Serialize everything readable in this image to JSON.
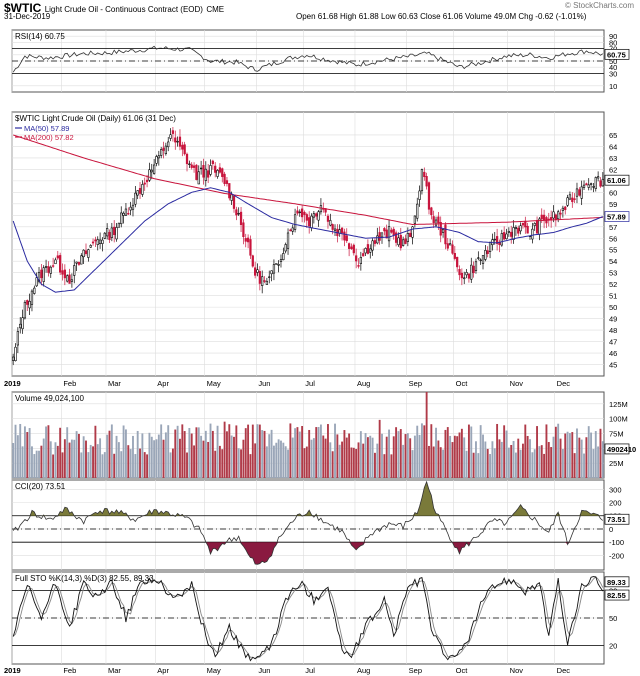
{
  "header": {
    "symbol": "$WTIC",
    "description": "Light Crude Oil - Continuous Contract (EOD)",
    "exchange": "CME",
    "date": "31-Dec-2019",
    "ohlc": "Open 61.68  High 61.88  Low 60.63  Close 61.06  Volume 49.0M  Chg -0.62 (-1.01%)",
    "brand": "© StockCharts.com"
  },
  "colors": {
    "up": "#000000",
    "down": "#c8143c",
    "ma50": "#2a2aa0",
    "ma200": "#c8143c",
    "rsi": "#333333",
    "grid": "#dddddd",
    "volUp": "#9aa6b8",
    "volDown": "#b03a48",
    "cciFill": "#7a7a3a",
    "cciFillDown": "#8a1a40"
  },
  "x_axis": {
    "months": [
      {
        "label": "2019",
        "bar": 0,
        "bold": true
      },
      {
        "label": "Feb",
        "bar": 21
      },
      {
        "label": "Mar",
        "bar": 40
      },
      {
        "label": "Apr",
        "bar": 61
      },
      {
        "label": "May",
        "bar": 82
      },
      {
        "label": "Jun",
        "bar": 104
      },
      {
        "label": "Jul",
        "bar": 124
      },
      {
        "label": "Aug",
        "bar": 146
      },
      {
        "label": "Sep",
        "bar": 168
      },
      {
        "label": "Oct",
        "bar": 188
      },
      {
        "label": "Nov",
        "bar": 211
      },
      {
        "label": "Dec",
        "bar": 231
      }
    ],
    "bars": 252
  },
  "chart_data": [
    {
      "type": "line",
      "title": "RSI(14) 60.75",
      "ylim": [
        0,
        100
      ],
      "ticks": [
        90,
        80,
        70,
        60,
        50,
        40,
        30,
        10
      ],
      "ref_lines": [
        70,
        50,
        30
      ],
      "last_value": "60.75",
      "grid": true,
      "anchors": [
        [
          0,
          32
        ],
        [
          5,
          58
        ],
        [
          15,
          55
        ],
        [
          30,
          62
        ],
        [
          40,
          63
        ],
        [
          55,
          68
        ],
        [
          62,
          71
        ],
        [
          75,
          68
        ],
        [
          84,
          50
        ],
        [
          95,
          48
        ],
        [
          103,
          36
        ],
        [
          108,
          42
        ],
        [
          118,
          55
        ],
        [
          125,
          60
        ],
        [
          134,
          52
        ],
        [
          146,
          44
        ],
        [
          156,
          50
        ],
        [
          170,
          58
        ],
        [
          176,
          62
        ],
        [
          185,
          48
        ],
        [
          190,
          40
        ],
        [
          198,
          46
        ],
        [
          210,
          58
        ],
        [
          220,
          60
        ],
        [
          228,
          55
        ],
        [
          236,
          62
        ],
        [
          244,
          66
        ],
        [
          251,
          60.75
        ]
      ]
    },
    {
      "type": "candlestick",
      "title": "$WTIC Light Crude Oil (Daily) 61.06 (31 Dec)",
      "ylim": [
        44,
        67
      ],
      "ticks": [
        65,
        64,
        63,
        62,
        61,
        60,
        59,
        58,
        57,
        56,
        55,
        54,
        53,
        52,
        51,
        50,
        49,
        48,
        47,
        46,
        45
      ],
      "last_value": "61.06",
      "legend": [
        {
          "name": "MA(50) 57.89",
          "color": "#2a2aa0"
        },
        {
          "name": "MA(200) 57.82",
          "color": "#c8143c"
        }
      ],
      "ma50_last": "57.89",
      "ma200_last": "57.82",
      "grid": true,
      "anchors": [
        [
          0,
          45.4
        ],
        [
          4,
          49.5
        ],
        [
          8,
          51.5
        ],
        [
          12,
          53
        ],
        [
          18,
          54
        ],
        [
          24,
          52.5
        ],
        [
          30,
          54.5
        ],
        [
          36,
          56
        ],
        [
          42,
          56.5
        ],
        [
          50,
          59
        ],
        [
          56,
          61
        ],
        [
          62,
          63
        ],
        [
          67,
          65
        ],
        [
          72,
          63.5
        ],
        [
          78,
          61.5
        ],
        [
          85,
          62
        ],
        [
          90,
          61
        ],
        [
          96,
          58
        ],
        [
          103,
          53
        ],
        [
          108,
          52
        ],
        [
          113,
          54
        ],
        [
          118,
          57
        ],
        [
          122,
          58.5
        ],
        [
          126,
          57.5
        ],
        [
          131,
          59
        ],
        [
          136,
          57
        ],
        [
          142,
          56
        ],
        [
          147,
          54
        ],
        [
          152,
          55.5
        ],
        [
          160,
          56.5
        ],
        [
          166,
          55.5
        ],
        [
          170,
          56.5
        ],
        [
          174,
          62
        ],
        [
          178,
          58
        ],
        [
          184,
          56
        ],
        [
          188,
          54
        ],
        [
          192,
          52.5
        ],
        [
          196,
          53.5
        ],
        [
          202,
          55
        ],
        [
          208,
          56
        ],
        [
          214,
          57
        ],
        [
          220,
          56.5
        ],
        [
          226,
          57.5
        ],
        [
          232,
          58
        ],
        [
          238,
          59.5
        ],
        [
          244,
          61
        ],
        [
          251,
          61.06
        ]
      ],
      "ma50_anchors": [
        [
          0,
          57.5
        ],
        [
          6,
          54
        ],
        [
          12,
          52
        ],
        [
          18,
          51.3
        ],
        [
          26,
          51.5
        ],
        [
          36,
          53.5
        ],
        [
          46,
          55.5
        ],
        [
          56,
          57.5
        ],
        [
          66,
          59
        ],
        [
          76,
          60
        ],
        [
          84,
          60.4
        ],
        [
          92,
          60
        ],
        [
          100,
          59
        ],
        [
          110,
          57.8
        ],
        [
          120,
          57.2
        ],
        [
          130,
          56.8
        ],
        [
          140,
          56.4
        ],
        [
          150,
          56
        ],
        [
          160,
          56.1
        ],
        [
          170,
          56.8
        ],
        [
          180,
          57
        ],
        [
          190,
          56.5
        ],
        [
          198,
          55.7
        ],
        [
          206,
          55.6
        ],
        [
          214,
          56
        ],
        [
          222,
          56.3
        ],
        [
          230,
          56.5
        ],
        [
          238,
          57
        ],
        [
          244,
          57.3
        ],
        [
          251,
          57.89
        ]
      ],
      "ma200_anchors": [
        [
          0,
          65
        ],
        [
          30,
          63
        ],
        [
          60,
          61.2
        ],
        [
          90,
          59.9
        ],
        [
          120,
          59
        ],
        [
          150,
          58
        ],
        [
          170,
          57.2
        ],
        [
          190,
          57.3
        ],
        [
          210,
          57.4
        ],
        [
          230,
          57.6
        ],
        [
          251,
          57.82
        ]
      ]
    },
    {
      "type": "bar",
      "title": "Volume 49,024,100",
      "ylim": [
        0,
        145
      ],
      "tick_labels": [
        "125M",
        "100M",
        "75M",
        "50M",
        "25M"
      ],
      "ticks": [
        125,
        100,
        75,
        50,
        25
      ],
      "last_value": "49,024,100",
      "base": 66,
      "spikes": [
        [
          176,
          145
        ],
        [
          156,
          98
        ],
        [
          90,
          95
        ],
        [
          70,
          88
        ],
        [
          118,
          92
        ],
        [
          130,
          86
        ],
        [
          210,
          80
        ],
        [
          236,
          78
        ]
      ],
      "grid": true
    },
    {
      "type": "area",
      "title": "CCI(20) 73.51",
      "ylim": [
        -310,
        370
      ],
      "ticks": [
        300,
        200,
        100,
        0,
        -100,
        -200
      ],
      "ref_lines": [
        100,
        0,
        -100
      ],
      "last_value": "73.51",
      "anchors": [
        [
          0,
          -30
        ],
        [
          8,
          120
        ],
        [
          16,
          70
        ],
        [
          22,
          150
        ],
        [
          30,
          60
        ],
        [
          36,
          140
        ],
        [
          44,
          130
        ],
        [
          52,
          70
        ],
        [
          60,
          140
        ],
        [
          66,
          120
        ],
        [
          74,
          80
        ],
        [
          80,
          -20
        ],
        [
          84,
          -180
        ],
        [
          90,
          -100
        ],
        [
          96,
          -60
        ],
        [
          100,
          -200
        ],
        [
          104,
          -280
        ],
        [
          108,
          -240
        ],
        [
          114,
          -50
        ],
        [
          120,
          80
        ],
        [
          126,
          140
        ],
        [
          132,
          60
        ],
        [
          140,
          -20
        ],
        [
          146,
          -180
        ],
        [
          152,
          -40
        ],
        [
          160,
          40
        ],
        [
          166,
          20
        ],
        [
          172,
          120
        ],
        [
          176,
          360
        ],
        [
          180,
          120
        ],
        [
          186,
          -60
        ],
        [
          190,
          -170
        ],
        [
          196,
          -80
        ],
        [
          204,
          60
        ],
        [
          210,
          40
        ],
        [
          216,
          160
        ],
        [
          222,
          70
        ],
        [
          228,
          -30
        ],
        [
          232,
          120
        ],
        [
          236,
          -110
        ],
        [
          242,
          130
        ],
        [
          248,
          100
        ],
        [
          251,
          73.51
        ]
      ]
    },
    {
      "type": "line",
      "title": "Full STO %K(14,3) %D(3) 82.55, 89.33",
      "ylim": [
        0,
        100
      ],
      "ticks": [
        80,
        50,
        20
      ],
      "ref_lines": [
        80,
        50,
        20
      ],
      "k_last": "82.55",
      "d_last": "89.33",
      "anchors": [
        [
          0,
          30
        ],
        [
          6,
          85
        ],
        [
          12,
          50
        ],
        [
          18,
          88
        ],
        [
          24,
          40
        ],
        [
          30,
          88
        ],
        [
          36,
          70
        ],
        [
          42,
          90
        ],
        [
          48,
          50
        ],
        [
          54,
          88
        ],
        [
          62,
          92
        ],
        [
          68,
          70
        ],
        [
          76,
          85
        ],
        [
          82,
          30
        ],
        [
          86,
          10
        ],
        [
          92,
          40
        ],
        [
          98,
          12
        ],
        [
          104,
          5
        ],
        [
          110,
          20
        ],
        [
          116,
          70
        ],
        [
          122,
          88
        ],
        [
          128,
          70
        ],
        [
          134,
          85
        ],
        [
          140,
          15
        ],
        [
          144,
          8
        ],
        [
          150,
          40
        ],
        [
          158,
          70
        ],
        [
          162,
          30
        ],
        [
          168,
          85
        ],
        [
          174,
          90
        ],
        [
          178,
          40
        ],
        [
          184,
          10
        ],
        [
          188,
          4
        ],
        [
          194,
          30
        ],
        [
          200,
          70
        ],
        [
          206,
          88
        ],
        [
          212,
          92
        ],
        [
          218,
          80
        ],
        [
          224,
          88
        ],
        [
          228,
          30
        ],
        [
          232,
          90
        ],
        [
          236,
          20
        ],
        [
          242,
          85
        ],
        [
          248,
          92
        ],
        [
          251,
          82.55
        ]
      ]
    }
  ]
}
